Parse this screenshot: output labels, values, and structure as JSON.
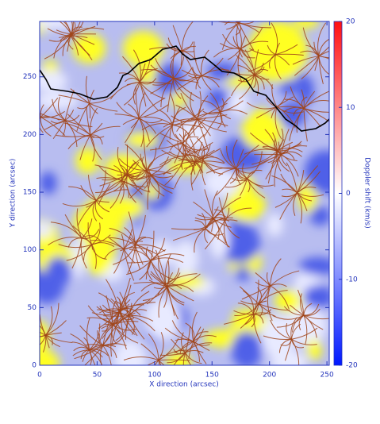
{
  "chart_data": {
    "type": "image",
    "xlabel": "X direction (arcsec)",
    "ylabel": "Y direction (arcsec)",
    "xlim": [
      0,
      252
    ],
    "xticks": [
      0,
      50,
      100,
      150,
      200,
      250
    ],
    "ylim": [
      0,
      298
    ],
    "yticks": [
      0,
      50,
      100,
      150,
      200,
      250
    ],
    "colorbar_label": "Doppler shift (km/s)",
    "clim": [
      -20,
      20
    ],
    "cticks": [
      -20,
      -10,
      0,
      10,
      20
    ],
    "axis_color": "#2233bb"
  }
}
